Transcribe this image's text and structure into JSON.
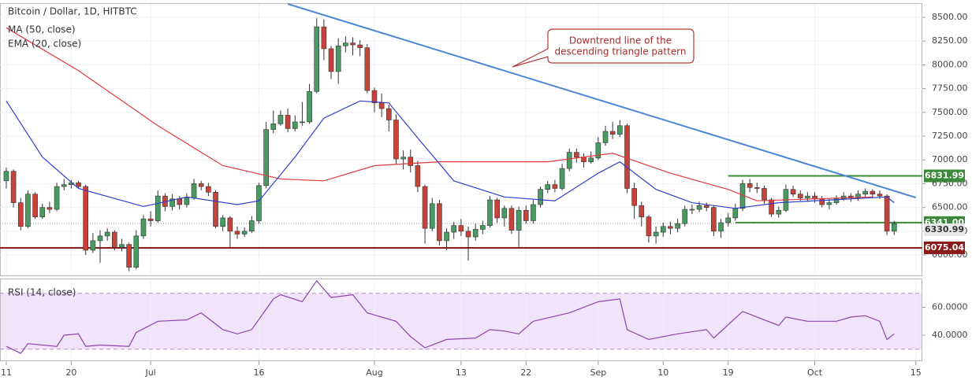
{
  "chart_data": [
    {
      "type": "candlestick",
      "title": "Bitcoin / Dollar, 1D, HITBTC",
      "up_color": "#4a9a63",
      "down_color": "#c9423a",
      "xlim": [
        -0.87,
        126.9
      ],
      "ylim": [
        5785,
        8641
      ],
      "yticks": [
        {
          "value": 6000,
          "label": "6000.00"
        },
        {
          "value": 6250,
          "label": "6250.00"
        },
        {
          "value": 6500,
          "label": "6500.00"
        },
        {
          "value": 6750,
          "label": "6750.00"
        },
        {
          "value": 7000,
          "label": "7000.00"
        },
        {
          "value": 7250,
          "label": "7250.00"
        },
        {
          "value": 7500,
          "label": "7500.00"
        },
        {
          "value": 7750,
          "label": "7750.00"
        },
        {
          "value": 8000,
          "label": "8000.00"
        },
        {
          "value": 8250,
          "label": "8250.00"
        },
        {
          "value": 8500,
          "label": "8500.00"
        }
      ],
      "grid": true,
      "open": [
        6780,
        6880,
        6550,
        6300,
        6640,
        6400,
        6500,
        6480,
        6720,
        6740,
        6760,
        6720,
        6050,
        6150,
        6200,
        6240,
        6080,
        6110,
        5870,
        6200,
        6380,
        6360,
        6620,
        6510,
        6590,
        6530,
        6600,
        6750,
        6720,
        6660,
        6300,
        6390,
        6250,
        6220,
        6250,
        6360,
        6730,
        7320,
        7380,
        7470,
        7330,
        7400,
        7400,
        7720,
        8400,
        8170,
        7930,
        8200,
        8230,
        8210,
        8180,
        7730,
        7600,
        7540,
        7420,
        7010,
        7030,
        6940,
        6720,
        6280,
        6540,
        6150,
        6240,
        6310,
        6250,
        6190,
        6270,
        6310,
        6580,
        6390,
        6490,
        6260,
        6470,
        6360,
        6530,
        6690,
        6740,
        6700,
        6910,
        7080,
        7030,
        6980,
        7020,
        7180,
        7300,
        7270,
        7360,
        6700,
        6520,
        6400,
        6200,
        6240,
        6300,
        6280,
        6330,
        6480,
        6480,
        6520,
        6500,
        6250,
        6340,
        6390,
        6490,
        6750,
        6710,
        6700,
        6580,
        6430,
        6470,
        6690,
        6640,
        6600,
        6620,
        6590,
        6530,
        6550,
        6590,
        6620,
        6600,
        6640,
        6670,
        6640,
        6620,
        6250
      ],
      "high": [
        6920,
        6900,
        6600,
        6680,
        6660,
        6540,
        6560,
        6760,
        6800,
        6790,
        6780,
        6740,
        6230,
        6260,
        6280,
        6260,
        6170,
        6130,
        6260,
        6420,
        6460,
        6680,
        6650,
        6640,
        6620,
        6650,
        6800,
        6780,
        6760,
        6680,
        6420,
        6410,
        6300,
        6290,
        6410,
        6760,
        7400,
        7520,
        7520,
        7540,
        7470,
        7610,
        7800,
        8490,
        8480,
        8200,
        8280,
        8300,
        8290,
        8260,
        8220,
        7760,
        7700,
        7580,
        7480,
        7100,
        7110,
        6990,
        6740,
        6600,
        6580,
        6280,
        6350,
        6380,
        6300,
        6330,
        6360,
        6620,
        6600,
        6520,
        6520,
        6510,
        6520,
        6580,
        6720,
        6780,
        6790,
        6960,
        7120,
        7120,
        7070,
        7090,
        7240,
        7360,
        7400,
        7420,
        7380,
        6760,
        6560,
        6420,
        6300,
        6340,
        6350,
        6380,
        6520,
        6530,
        6560,
        6550,
        6520,
        6380,
        6440,
        6540,
        6790,
        6800,
        6760,
        6730,
        6600,
        6510,
        6740,
        6730,
        6680,
        6660,
        6660,
        6620,
        6590,
        6630,
        6660,
        6650,
        6680,
        6700,
        6690,
        6680,
        6640,
        6360
      ],
      "low": [
        6700,
        6500,
        6260,
        6280,
        6380,
        6380,
        6440,
        6460,
        6680,
        6700,
        6700,
        6000,
        6020,
        5920,
        6150,
        6050,
        6040,
        5830,
        5850,
        6170,
        6300,
        6340,
        6460,
        6470,
        6480,
        6500,
        6580,
        6680,
        6620,
        6280,
        6250,
        6080,
        6170,
        6190,
        6230,
        6330,
        6700,
        7280,
        7360,
        7290,
        7300,
        7360,
        7380,
        7700,
        8050,
        7850,
        7800,
        8130,
        8100,
        8090,
        7700,
        7500,
        7450,
        7300,
        6950,
        6900,
        6870,
        6660,
        6120,
        6250,
        6100,
        6050,
        6170,
        6200,
        5940,
        6150,
        6220,
        6290,
        6340,
        6300,
        6220,
        6080,
        6330,
        6330,
        6500,
        6650,
        6660,
        6680,
        6880,
        6970,
        6920,
        6960,
        7000,
        7150,
        7220,
        7240,
        6650,
        6380,
        6300,
        6130,
        6120,
        6190,
        6220,
        6240,
        6300,
        6430,
        6450,
        6460,
        6200,
        6180,
        6300,
        6360,
        6460,
        6660,
        6650,
        6540,
        6400,
        6390,
        6450,
        6610,
        6570,
        6560,
        6550,
        6500,
        6480,
        6530,
        6570,
        6560,
        6570,
        6610,
        6600,
        6590,
        6210,
        6210
      ],
      "close": [
        6880,
        6550,
        6300,
        6640,
        6400,
        6500,
        6480,
        6720,
        6740,
        6760,
        6720,
        6050,
        6150,
        6200,
        6240,
        6080,
        6110,
        5870,
        6200,
        6380,
        6360,
        6620,
        6510,
        6590,
        6530,
        6600,
        6750,
        6720,
        6660,
        6300,
        6390,
        6250,
        6220,
        6250,
        6360,
        6730,
        7320,
        7380,
        7470,
        7330,
        7400,
        7400,
        7720,
        8400,
        8170,
        7930,
        8200,
        8230,
        8210,
        8180,
        7730,
        7600,
        7540,
        7420,
        7010,
        7030,
        6940,
        6720,
        6280,
        6540,
        6150,
        6240,
        6310,
        6250,
        6190,
        6270,
        6310,
        6580,
        6390,
        6490,
        6260,
        6470,
        6360,
        6530,
        6690,
        6740,
        6700,
        6910,
        7080,
        7030,
        6980,
        7020,
        7180,
        7300,
        7270,
        7360,
        6700,
        6520,
        6400,
        6200,
        6240,
        6300,
        6280,
        6330,
        6480,
        6480,
        6520,
        6500,
        6250,
        6340,
        6390,
        6490,
        6750,
        6710,
        6700,
        6580,
        6430,
        6470,
        6690,
        6640,
        6600,
        6620,
        6590,
        6530,
        6550,
        6590,
        6620,
        6600,
        6640,
        6670,
        6640,
        6620,
        6250,
        6330
      ],
      "series": [
        {
          "name": "MA (50, close)",
          "color": "#e0393e",
          "x": [
            0,
            10,
            21,
            30,
            38,
            44,
            51,
            60,
            75,
            84,
            92,
            100,
            104,
            120
          ],
          "values": [
            8390,
            7940,
            7360,
            6940,
            6800,
            6780,
            6940,
            6980,
            6980,
            7070,
            6860,
            6690,
            6570,
            6610
          ]
        },
        {
          "name": "EMA (20, close)",
          "color": "#2f3fd0",
          "x": [
            0,
            5,
            10,
            19,
            25,
            32,
            35,
            40,
            44,
            49,
            53,
            57,
            62,
            69,
            76,
            82,
            85,
            90,
            95,
            101,
            107,
            122,
            123
          ],
          "values": [
            7620,
            7030,
            6700,
            6510,
            6610,
            6530,
            6570,
            7030,
            7440,
            7620,
            7600,
            7230,
            6780,
            6610,
            6570,
            6860,
            6980,
            6690,
            6550,
            6490,
            6550,
            6610,
            6550
          ]
        }
      ],
      "trendline": {
        "x": [
          39,
          126
        ],
        "values": [
          8641,
          6604
        ],
        "color": "#4a86d8"
      },
      "levels": [
        {
          "value": 6831.99,
          "color": "#3a8a3a",
          "start": 100
        },
        {
          "value": 6341,
          "label": "6341.00",
          "color": "#3a8a3a",
          "start": 101
        },
        {
          "value": 6330.99,
          "color": "#9a9a9a",
          "style": "dotted"
        },
        {
          "value": 6075.04,
          "color": "#8b1a1a"
        }
      ],
      "annotation": [
        "Downtrend line of the",
        "descending triangle pattern"
      ]
    },
    {
      "type": "line",
      "title": "RSI (14, close)",
      "xlim": [
        -0.87,
        126.9
      ],
      "ylim": [
        22,
        80
      ],
      "yticks": [
        {
          "value": 40,
          "label": "40.0000"
        },
        {
          "value": 60,
          "label": "60.0000"
        }
      ],
      "band": [
        30,
        70
      ],
      "band_color": "#f1e3fa",
      "xticks": [
        {
          "value": 0,
          "label": "11"
        },
        {
          "value": 9,
          "label": "20"
        },
        {
          "value": 20,
          "label": "Jul"
        },
        {
          "value": 35,
          "label": "16"
        },
        {
          "value": 51,
          "label": "Aug"
        },
        {
          "value": 63,
          "label": "13"
        },
        {
          "value": 72,
          "label": "22"
        },
        {
          "value": 82,
          "label": "Sep"
        },
        {
          "value": 91,
          "label": "10"
        },
        {
          "value": 100,
          "label": "19"
        },
        {
          "value": 112,
          "label": "Oct"
        },
        {
          "value": 126,
          "label": "15"
        }
      ],
      "series": [
        {
          "color": "#8e44ad",
          "x": [
            0,
            2,
            3,
            7,
            8,
            10,
            11,
            13,
            17,
            18,
            21,
            25,
            27,
            30,
            32,
            34,
            37,
            38,
            41,
            43,
            45,
            48,
            50,
            54,
            56,
            58,
            61,
            65,
            67,
            69,
            71,
            73,
            78,
            82,
            85,
            86,
            89,
            93,
            97,
            98,
            102,
            104,
            107,
            108,
            111,
            115,
            117,
            119,
            121,
            122,
            123
          ],
          "values": [
            32,
            27,
            34,
            32,
            40,
            41,
            32,
            33,
            32,
            42,
            50,
            51,
            56,
            44,
            41,
            44,
            66,
            69,
            64,
            79,
            67,
            69,
            56,
            50,
            39,
            31,
            37,
            38,
            44,
            43,
            41,
            50,
            56,
            64,
            66,
            44,
            37,
            41,
            44,
            38,
            57,
            53,
            47,
            53,
            50,
            50,
            53,
            54,
            50,
            37,
            41
          ]
        }
      ]
    }
  ]
}
